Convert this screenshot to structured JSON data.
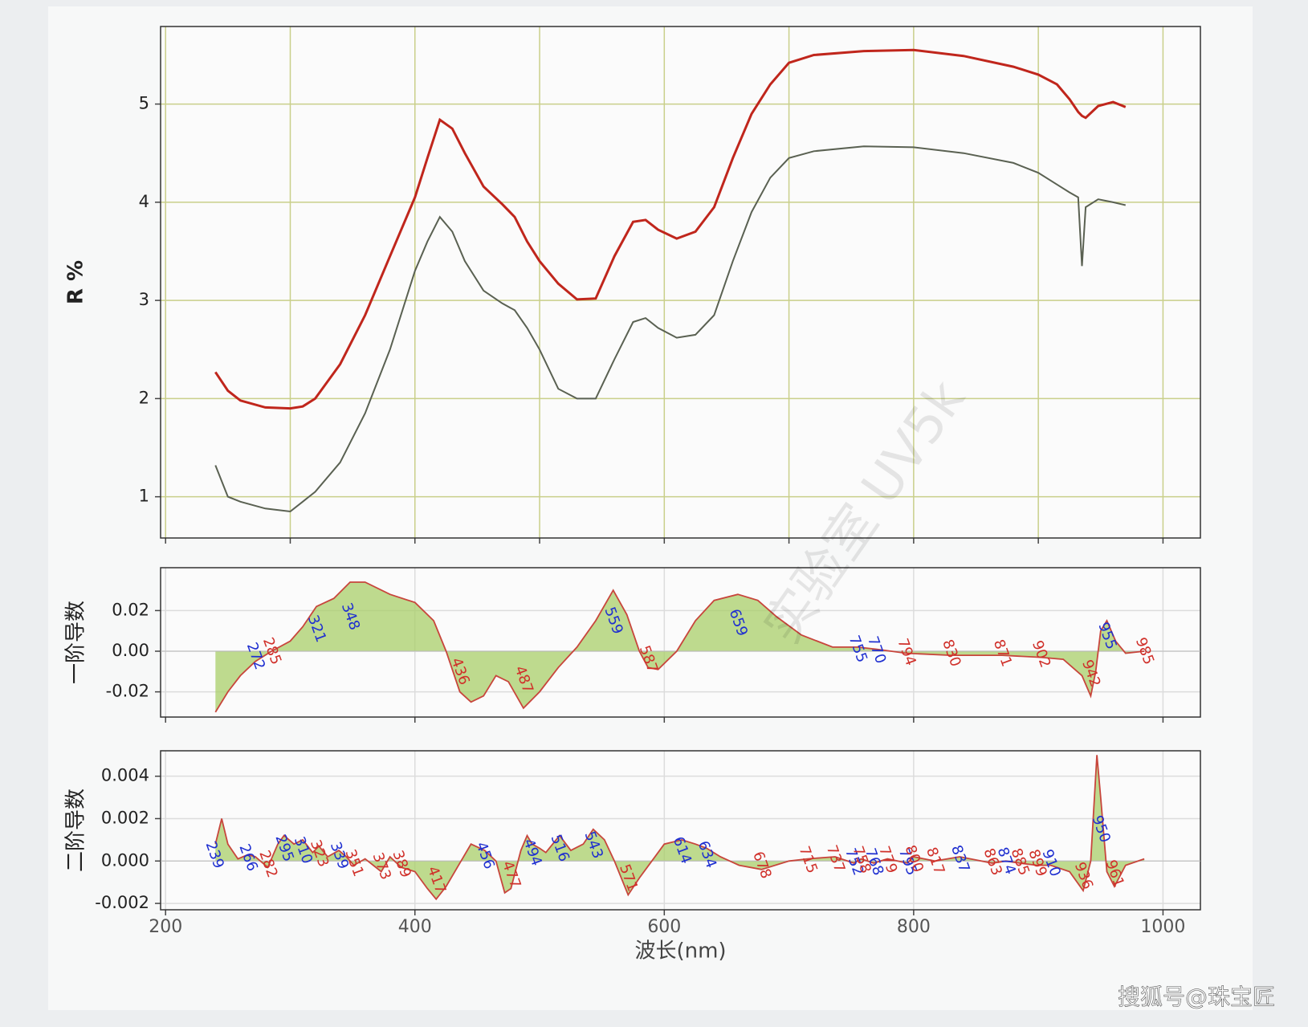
{
  "chart_data": [
    {
      "type": "line",
      "ylabel": "R %",
      "x": [
        240,
        250,
        260,
        280,
        300,
        310,
        320,
        340,
        360,
        380,
        400,
        410,
        420,
        430,
        440,
        455,
        470,
        480,
        490,
        500,
        515,
        530,
        545,
        560,
        575,
        585,
        595,
        610,
        625,
        640,
        655,
        670,
        685,
        700,
        720,
        760,
        800,
        840,
        880,
        900,
        915,
        925,
        932,
        935,
        938,
        948,
        960,
        970
      ],
      "series": [
        {
          "color": "#c0261c",
          "values": [
            2.27,
            2.08,
            1.98,
            1.91,
            1.9,
            1.92,
            2.0,
            2.35,
            2.85,
            3.45,
            4.05,
            4.45,
            4.84,
            4.75,
            4.5,
            4.16,
            3.98,
            3.85,
            3.6,
            3.4,
            3.17,
            3.01,
            3.02,
            3.45,
            3.8,
            3.82,
            3.72,
            3.63,
            3.7,
            3.95,
            4.45,
            4.9,
            5.2,
            5.42,
            5.5,
            5.54,
            5.55,
            5.49,
            5.38,
            5.3,
            5.2,
            5.05,
            4.92,
            4.88,
            4.86,
            4.98,
            5.02,
            4.97
          ]
        },
        {
          "color": "#5a6152",
          "values": [
            1.32,
            1.0,
            0.95,
            0.88,
            0.85,
            0.95,
            1.05,
            1.35,
            1.85,
            2.5,
            3.3,
            3.6,
            3.85,
            3.7,
            3.4,
            3.1,
            2.97,
            2.9,
            2.72,
            2.5,
            2.1,
            2.0,
            2.0,
            2.4,
            2.78,
            2.82,
            2.72,
            2.62,
            2.65,
            2.85,
            3.4,
            3.9,
            4.25,
            4.45,
            4.52,
            4.57,
            4.56,
            4.5,
            4.4,
            4.3,
            4.18,
            4.1,
            4.05,
            3.35,
            3.95,
            4.03,
            4.0,
            3.97
          ]
        }
      ],
      "xlim": [
        196,
        1030
      ],
      "ylim": [
        0.58,
        5.79
      ],
      "yticks": [
        1,
        2,
        3,
        4,
        5
      ],
      "xticks": [
        200,
        300,
        400,
        500,
        600,
        700,
        800,
        900,
        1000
      ],
      "show_xtick_labels": false,
      "grid": true,
      "grid_color": "#c9cf8a"
    },
    {
      "type": "area",
      "ylabel": "一阶导数",
      "x": [
        240,
        250,
        260,
        272,
        285,
        300,
        310,
        321,
        335,
        348,
        360,
        380,
        400,
        415,
        425,
        436,
        445,
        455,
        465,
        475,
        487,
        500,
        515,
        530,
        545,
        559,
        570,
        580,
        587,
        595,
        610,
        625,
        640,
        659,
        675,
        690,
        710,
        735,
        755,
        770,
        794,
        830,
        871,
        902,
        920,
        935,
        942,
        946,
        950,
        955,
        962,
        970,
        985
      ],
      "values": [
        -0.03,
        -0.02,
        -0.012,
        -0.005,
        0.0,
        0.005,
        0.012,
        0.022,
        0.026,
        0.034,
        0.034,
        0.028,
        0.024,
        0.015,
        0.0,
        -0.02,
        -0.025,
        -0.022,
        -0.012,
        -0.015,
        -0.028,
        -0.02,
        -0.008,
        0.002,
        0.015,
        0.03,
        0.018,
        0.0,
        -0.008,
        -0.009,
        0.0,
        0.015,
        0.025,
        0.028,
        0.025,
        0.017,
        0.008,
        0.002,
        0.002,
        0.001,
        -0.001,
        -0.002,
        -0.002,
        -0.003,
        -0.004,
        -0.012,
        -0.022,
        -0.01,
        0.01,
        0.015,
        0.005,
        -0.001,
        0.0
      ],
      "color": "#c8453c",
      "fill": "#a9cf6a",
      "peaks": [
        {
          "x": 272,
          "color": "#1f2fd0"
        },
        {
          "x": 285,
          "color": "#d0302a"
        },
        {
          "x": 321,
          "color": "#1f2fd0"
        },
        {
          "x": 348,
          "color": "#1f2fd0"
        },
        {
          "x": 436,
          "color": "#d0302a"
        },
        {
          "x": 487,
          "color": "#d0302a"
        },
        {
          "x": 559,
          "color": "#1f2fd0"
        },
        {
          "x": 587,
          "color": "#d0302a"
        },
        {
          "x": 659,
          "color": "#1f2fd0"
        },
        {
          "x": 755,
          "color": "#1f2fd0"
        },
        {
          "x": 770,
          "color": "#1f2fd0"
        },
        {
          "x": 794,
          "color": "#d0302a"
        },
        {
          "x": 830,
          "color": "#d0302a"
        },
        {
          "x": 871,
          "color": "#d0302a"
        },
        {
          "x": 902,
          "color": "#d0302a"
        },
        {
          "x": 942,
          "color": "#d0302a"
        },
        {
          "x": 955,
          "color": "#1f2fd0"
        },
        {
          "x": 985,
          "color": "#d0302a"
        }
      ],
      "xlim": [
        196,
        1030
      ],
      "ylim": [
        -0.0324,
        0.0411
      ],
      "yticks": [
        {
          "value": -0.02,
          "label": "-0.02"
        },
        {
          "value": 0,
          "label": "0.00"
        },
        {
          "value": 0.02,
          "label": "0.02"
        }
      ],
      "xticks": [
        200,
        400,
        600,
        800,
        1000
      ],
      "show_xtick_labels": false,
      "grid": true,
      "grid_color": "#dcdcdc"
    },
    {
      "type": "area",
      "ylabel": "二阶导数",
      "xlabel": "波长(nm)",
      "x": [
        240,
        245,
        250,
        258,
        266,
        272,
        282,
        290,
        295,
        303,
        310,
        318,
        323,
        330,
        339,
        345,
        351,
        360,
        373,
        380,
        389,
        400,
        410,
        417,
        425,
        435,
        445,
        456,
        465,
        472,
        477,
        485,
        490,
        494,
        500,
        505,
        516,
        525,
        535,
        543,
        552,
        560,
        571,
        580,
        590,
        600,
        614,
        625,
        634,
        645,
        660,
        678,
        700,
        715,
        737,
        752,
        758,
        768,
        779,
        795,
        800,
        817,
        837,
        863,
        874,
        885,
        899,
        910,
        925,
        936,
        942,
        947,
        950,
        955,
        961,
        970,
        985
      ],
      "values": [
        0.0008,
        0.002,
        0.0008,
        0.0001,
        0.0003,
        0.0002,
        -0.0003,
        0.0008,
        0.0012,
        0.0008,
        0.001,
        0.0004,
        0.0007,
        0.0002,
        0.0005,
        0.0002,
        -0.0002,
        0.0001,
        -0.0005,
        0.0002,
        -0.0003,
        -0.0005,
        -0.0013,
        -0.0018,
        -0.0012,
        -0.0002,
        0.0008,
        0.0005,
        0.0,
        -0.0015,
        -0.0013,
        0.0005,
        0.0012,
        0.0008,
        0.0006,
        0.0004,
        0.0012,
        0.0005,
        0.0008,
        0.0015,
        0.001,
        0.0,
        -0.0016,
        -0.0008,
        0.0,
        0.0008,
        0.001,
        0.0008,
        0.0006,
        0.0002,
        -0.0002,
        -0.0004,
        0.0,
        0.0001,
        0.0002,
        -0.0001,
        0.0001,
        -0.0001,
        0.0001,
        -0.0001,
        0.0002,
        0.0,
        0.0002,
        -0.0001,
        0.0,
        -0.0001,
        -0.0002,
        -0.0002,
        -0.0005,
        -0.0014,
        0.0,
        0.005,
        0.003,
        -0.0005,
        -0.0012,
        -0.0002,
        0.0001
      ],
      "color": "#c8453c",
      "fill": "#a9cf6a",
      "peaks": [
        {
          "x": 239,
          "color": "#1f2fd0"
        },
        {
          "x": 266,
          "color": "#1f2fd0"
        },
        {
          "x": 282,
          "color": "#d0302a"
        },
        {
          "x": 295,
          "color": "#1f2fd0"
        },
        {
          "x": 310,
          "color": "#1f2fd0"
        },
        {
          "x": 323,
          "color": "#d0302a"
        },
        {
          "x": 339,
          "color": "#1f2fd0"
        },
        {
          "x": 351,
          "color": "#d0302a"
        },
        {
          "x": 373,
          "color": "#d0302a"
        },
        {
          "x": 389,
          "color": "#d0302a"
        },
        {
          "x": 417,
          "color": "#d0302a"
        },
        {
          "x": 456,
          "color": "#1f2fd0"
        },
        {
          "x": 477,
          "color": "#d0302a"
        },
        {
          "x": 494,
          "color": "#1f2fd0"
        },
        {
          "x": 516,
          "color": "#1f2fd0"
        },
        {
          "x": 543,
          "color": "#1f2fd0"
        },
        {
          "x": 571,
          "color": "#d0302a"
        },
        {
          "x": 614,
          "color": "#1f2fd0"
        },
        {
          "x": 634,
          "color": "#1f2fd0"
        },
        {
          "x": 678,
          "color": "#d0302a"
        },
        {
          "x": 715,
          "color": "#d0302a"
        },
        {
          "x": 737,
          "color": "#d0302a"
        },
        {
          "x": 752,
          "color": "#1f2fd0"
        },
        {
          "x": 758,
          "color": "#d0302a"
        },
        {
          "x": 768,
          "color": "#1f2fd0"
        },
        {
          "x": 779,
          "color": "#d0302a"
        },
        {
          "x": 795,
          "color": "#1f2fd0"
        },
        {
          "x": 800,
          "color": "#d0302a"
        },
        {
          "x": 817,
          "color": "#d0302a"
        },
        {
          "x": 837,
          "color": "#1f2fd0"
        },
        {
          "x": 863,
          "color": "#d0302a"
        },
        {
          "x": 874,
          "color": "#1f2fd0"
        },
        {
          "x": 885,
          "color": "#d0302a"
        },
        {
          "x": 899,
          "color": "#d0302a"
        },
        {
          "x": 910,
          "color": "#1f2fd0"
        },
        {
          "x": 936,
          "color": "#d0302a"
        },
        {
          "x": 950,
          "color": "#1f2fd0"
        },
        {
          "x": 961,
          "color": "#d0302a"
        }
      ],
      "xlim": [
        196,
        1030
      ],
      "ylim": [
        -0.0023,
        0.0052
      ],
      "yticks": [
        {
          "value": -0.002,
          "label": "-0.002"
        },
        {
          "value": 0,
          "label": "0.000"
        },
        {
          "value": 0.002,
          "label": "0.002"
        },
        {
          "value": 0.004,
          "label": "0.004"
        }
      ],
      "xticks": [
        200,
        400,
        600,
        800,
        1000
      ],
      "show_xtick_labels": true,
      "grid": true,
      "grid_color": "#dcdcdc"
    }
  ],
  "watermark": "实验室 UV5k",
  "footer": "搜狐号@珠宝匠"
}
